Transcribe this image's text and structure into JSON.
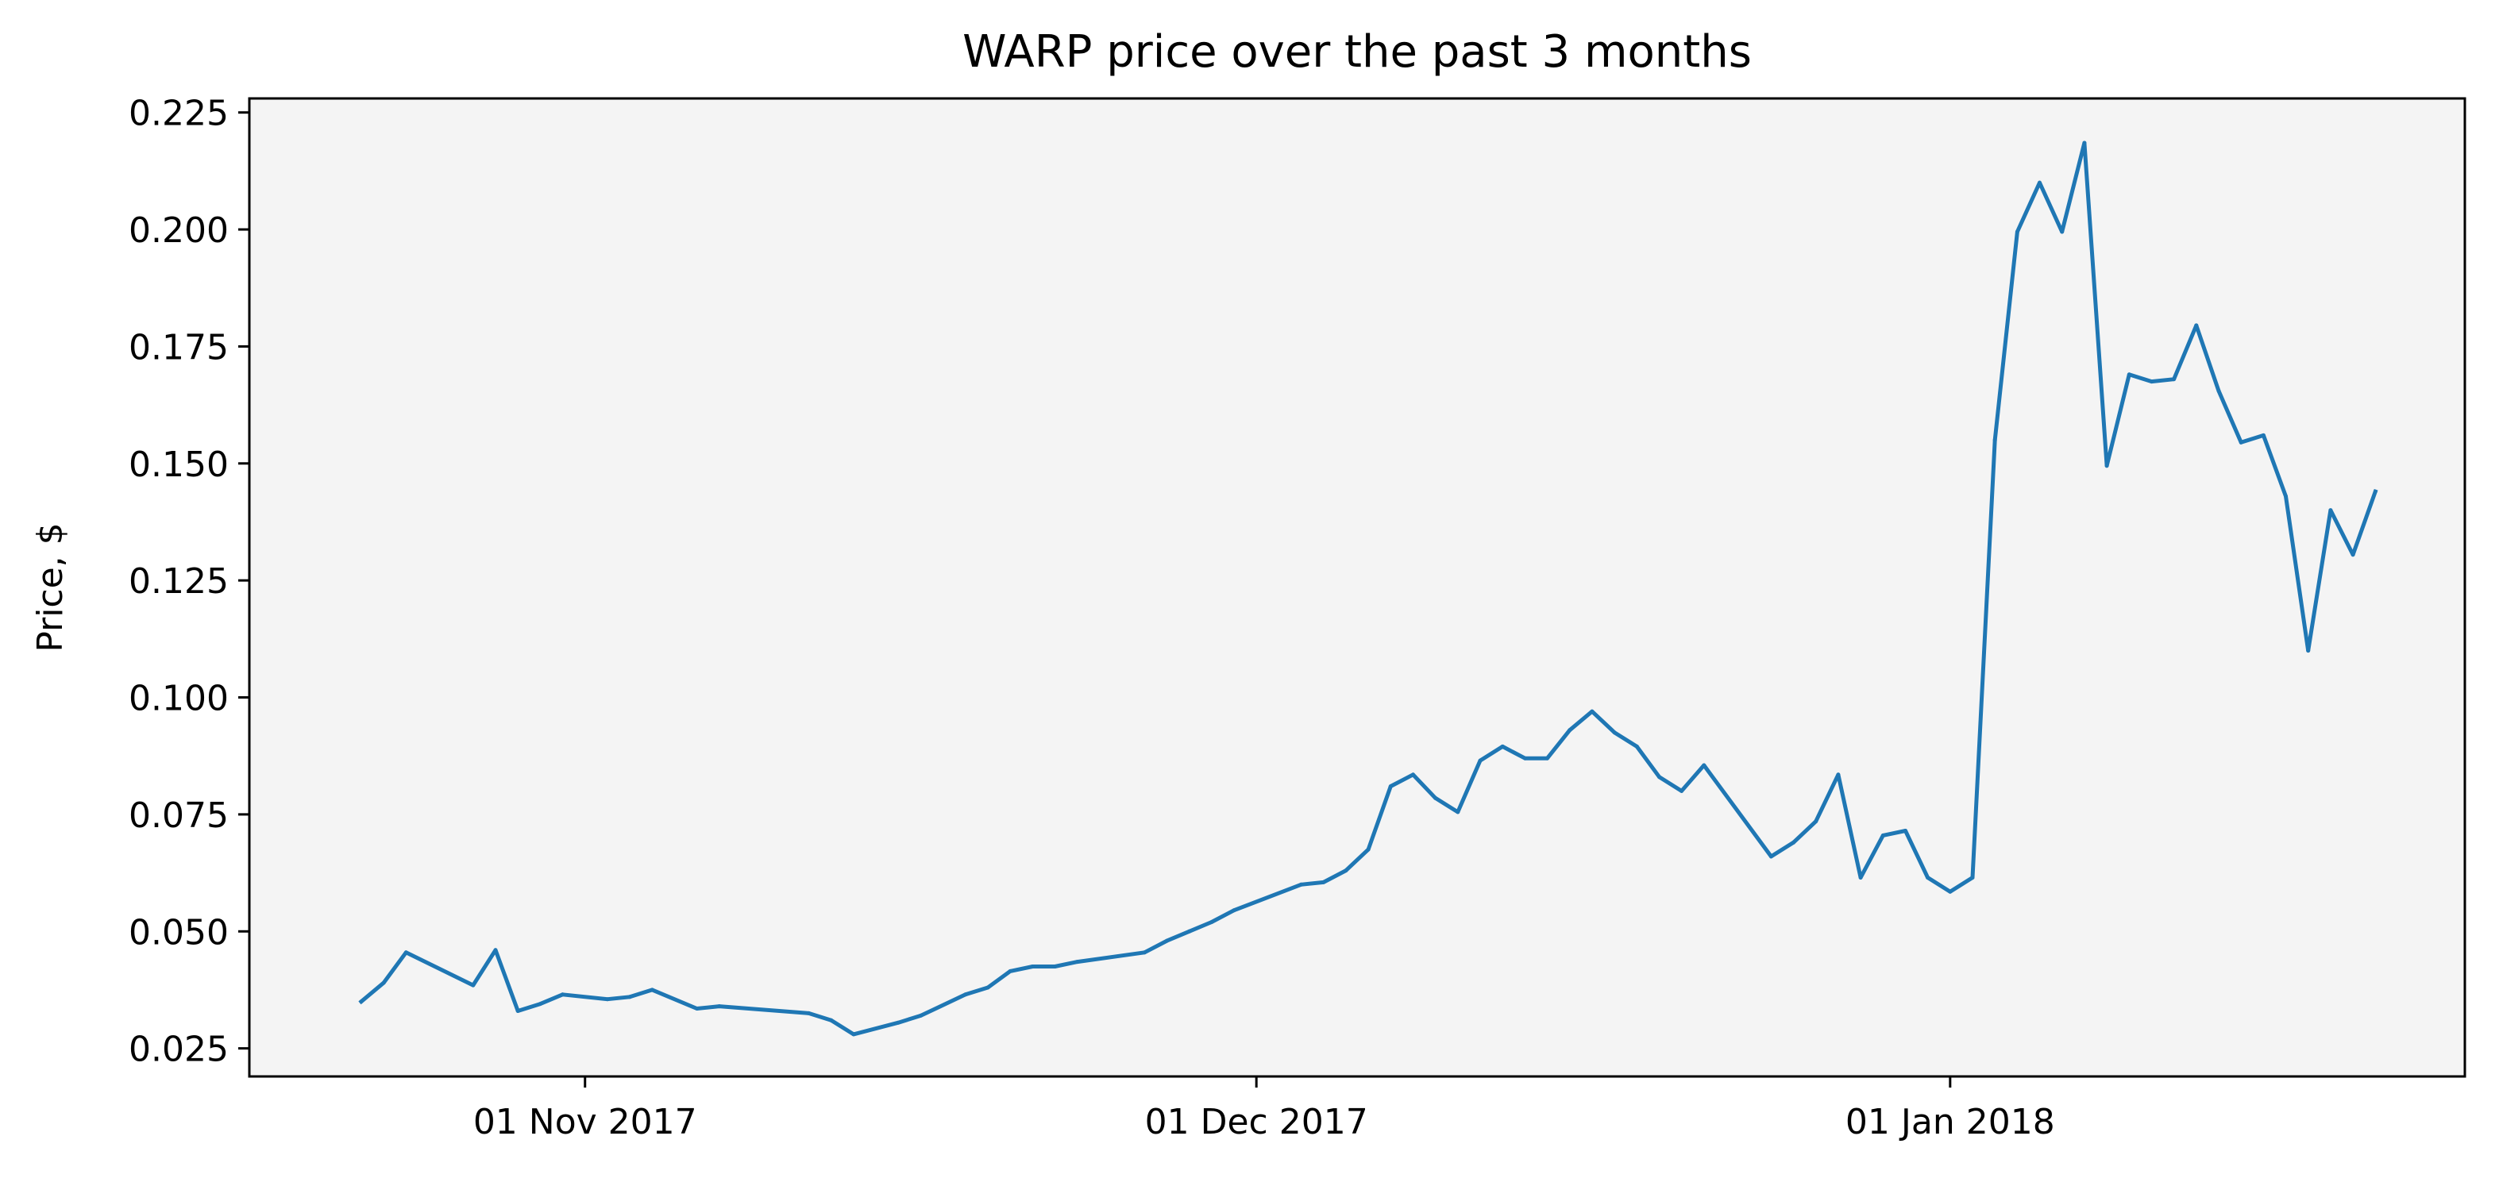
{
  "chart_data": {
    "type": "line",
    "title": "WARP price over the past 3 months",
    "xlabel": "",
    "ylabel": "Price, $",
    "ylim": [
      0.019,
      0.228
    ],
    "xlim": [
      "2017-10-17",
      "2018-01-24"
    ],
    "grid": false,
    "legend": "none",
    "line_color": "#1f77b4",
    "plot_background": "#f4f4f4",
    "x_ticks": [
      {
        "date": "2017-11-01",
        "label": "01 Nov 2017"
      },
      {
        "date": "2017-12-01",
        "label": "01 Dec 2017"
      },
      {
        "date": "2018-01-01",
        "label": "01 Jan 2018"
      }
    ],
    "y_ticks": [
      {
        "value": 0.025,
        "label": "0.025"
      },
      {
        "value": 0.05,
        "label": "0.050"
      },
      {
        "value": 0.075,
        "label": "0.075"
      },
      {
        "value": 0.1,
        "label": "0.100"
      },
      {
        "value": 0.125,
        "label": "0.125"
      },
      {
        "value": 0.15,
        "label": "0.150"
      },
      {
        "value": 0.175,
        "label": "0.175"
      },
      {
        "value": 0.2,
        "label": "0.200"
      },
      {
        "value": 0.225,
        "label": "0.225"
      }
    ],
    "series": [
      {
        "points": [
          [
            "2017-10-22",
            0.035
          ],
          [
            "2017-10-23",
            0.039
          ],
          [
            "2017-10-24",
            0.0455
          ],
          [
            "2017-10-27",
            0.0385
          ],
          [
            "2017-10-28",
            0.046
          ],
          [
            "2017-10-29",
            0.033
          ],
          [
            "2017-10-30",
            0.0345
          ],
          [
            "2017-10-31",
            0.0365
          ],
          [
            "2017-11-02",
            0.0355
          ],
          [
            "2017-11-03",
            0.036
          ],
          [
            "2017-11-04",
            0.0375
          ],
          [
            "2017-11-06",
            0.0335
          ],
          [
            "2017-11-07",
            0.034
          ],
          [
            "2017-11-11",
            0.0325
          ],
          [
            "2017-11-12",
            0.031
          ],
          [
            "2017-11-13",
            0.028
          ],
          [
            "2017-11-15",
            0.0305
          ],
          [
            "2017-11-16",
            0.032
          ],
          [
            "2017-11-18",
            0.0365
          ],
          [
            "2017-11-19",
            0.038
          ],
          [
            "2017-11-20",
            0.0415
          ],
          [
            "2017-11-21",
            0.0425
          ],
          [
            "2017-11-22",
            0.0425
          ],
          [
            "2017-11-23",
            0.0435
          ],
          [
            "2017-11-26",
            0.0455
          ],
          [
            "2017-11-27",
            0.048
          ],
          [
            "2017-11-28",
            0.05
          ],
          [
            "2017-11-29",
            0.052
          ],
          [
            "2017-11-30",
            0.0545
          ],
          [
            "2017-12-03",
            0.06
          ],
          [
            "2017-12-04",
            0.0605
          ],
          [
            "2017-12-05",
            0.063
          ],
          [
            "2017-12-06",
            0.0675
          ],
          [
            "2017-12-07",
            0.081
          ],
          [
            "2017-12-08",
            0.0835
          ],
          [
            "2017-12-09",
            0.0785
          ],
          [
            "2017-12-10",
            0.0755
          ],
          [
            "2017-12-11",
            0.0865
          ],
          [
            "2017-12-12",
            0.0895
          ],
          [
            "2017-12-13",
            0.087
          ],
          [
            "2017-12-14",
            0.087
          ],
          [
            "2017-12-15",
            0.093
          ],
          [
            "2017-12-16",
            0.097
          ],
          [
            "2017-12-17",
            0.0925
          ],
          [
            "2017-12-18",
            0.0895
          ],
          [
            "2017-12-19",
            0.083
          ],
          [
            "2017-12-20",
            0.08
          ],
          [
            "2017-12-21",
            0.0855
          ],
          [
            "2017-12-24",
            0.066
          ],
          [
            "2017-12-25",
            0.069
          ],
          [
            "2017-12-26",
            0.0735
          ],
          [
            "2017-12-27",
            0.0835
          ],
          [
            "2017-12-28",
            0.0615
          ],
          [
            "2017-12-29",
            0.0705
          ],
          [
            "2017-12-30",
            0.0715
          ],
          [
            "2017-12-31",
            0.0615
          ],
          [
            "2018-01-01",
            0.0585
          ],
          [
            "2018-01-02",
            0.0615
          ],
          [
            "2018-01-03",
            0.155
          ],
          [
            "2018-01-04",
            0.1995
          ],
          [
            "2018-01-05",
            0.21
          ],
          [
            "2018-01-06",
            0.1995
          ],
          [
            "2018-01-07",
            0.2185
          ],
          [
            "2018-01-08",
            0.1495
          ],
          [
            "2018-01-09",
            0.169
          ],
          [
            "2018-01-10",
            0.1675
          ],
          [
            "2018-01-11",
            0.168
          ],
          [
            "2018-01-12",
            0.1795
          ],
          [
            "2018-01-13",
            0.1655
          ],
          [
            "2018-01-14",
            0.1545
          ],
          [
            "2018-01-15",
            0.156
          ],
          [
            "2018-01-16",
            0.143
          ],
          [
            "2018-01-17",
            0.11
          ],
          [
            "2018-01-18",
            0.14
          ],
          [
            "2018-01-19",
            0.1305
          ],
          [
            "2018-01-20",
            0.144
          ]
        ]
      }
    ]
  }
}
